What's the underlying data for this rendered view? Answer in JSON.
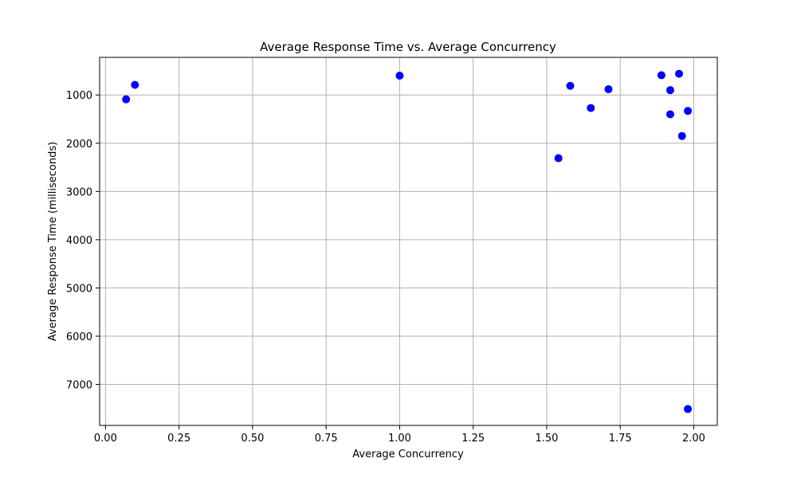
{
  "chart_data": {
    "type": "scatter",
    "title": "Average Response Time vs. Average Concurrency",
    "xlabel": "Average Concurrency",
    "ylabel": "Average Response Time (milliseconds)",
    "xlim": [
      -0.02,
      2.08
    ],
    "ylim": [
      7850,
      220
    ],
    "y_inverted": true,
    "x_ticks": [
      0.0,
      0.25,
      0.5,
      0.75,
      1.0,
      1.25,
      1.5,
      1.75,
      2.0
    ],
    "x_tick_labels": [
      "0.00",
      "0.25",
      "0.50",
      "0.75",
      "1.00",
      "1.25",
      "1.50",
      "1.75",
      "2.00"
    ],
    "y_ticks": [
      1000,
      2000,
      3000,
      4000,
      5000,
      6000,
      7000
    ],
    "y_tick_labels": [
      "1000",
      "2000",
      "3000",
      "4000",
      "5000",
      "6000",
      "7000"
    ],
    "grid": true,
    "marker_color": "#0000ff",
    "points": [
      {
        "x": 0.07,
        "y": 1090
      },
      {
        "x": 0.1,
        "y": 790
      },
      {
        "x": 1.0,
        "y": 600
      },
      {
        "x": 1.54,
        "y": 2310
      },
      {
        "x": 1.58,
        "y": 810
      },
      {
        "x": 1.65,
        "y": 1270
      },
      {
        "x": 1.71,
        "y": 880
      },
      {
        "x": 1.89,
        "y": 590
      },
      {
        "x": 1.92,
        "y": 900
      },
      {
        "x": 1.92,
        "y": 1400
      },
      {
        "x": 1.95,
        "y": 560
      },
      {
        "x": 1.96,
        "y": 1850
      },
      {
        "x": 1.98,
        "y": 1330
      },
      {
        "x": 1.98,
        "y": 7510
      }
    ]
  }
}
